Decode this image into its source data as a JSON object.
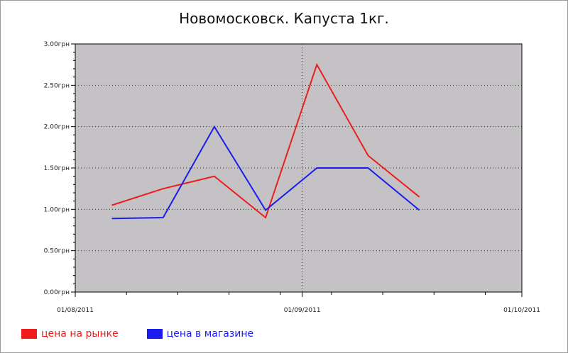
{
  "chart_data": {
    "type": "line",
    "title": "Новомосковск. Капуста 1кг.",
    "xlabel": "",
    "ylabel": "",
    "x_ticks": [
      "01/08/2011",
      "01/09/2011",
      "01/10/2011"
    ],
    "x_range": [
      "2011-08-01",
      "2011-10-01"
    ],
    "y_ticks": [
      "0.00грн",
      "0.50грн",
      "1.00грн",
      "1.50грн",
      "2.00грн",
      "2.50грн",
      "3.00грн"
    ],
    "ylim": [
      0,
      3
    ],
    "grid": true,
    "legend_position": "bottom-left",
    "background_color": "#c5c2c5",
    "series": [
      {
        "name": "цена на рынке",
        "color": "#ee1c1c",
        "points": [
          {
            "date": "2011-08-06",
            "value": 1.05
          },
          {
            "date": "2011-08-13",
            "value": 1.25
          },
          {
            "date": "2011-08-20",
            "value": 1.4
          },
          {
            "date": "2011-08-27",
            "value": 0.9
          },
          {
            "date": "2011-09-03",
            "value": 2.75
          },
          {
            "date": "2011-09-10",
            "value": 1.65
          },
          {
            "date": "2011-09-17",
            "value": 1.15
          }
        ]
      },
      {
        "name": "цена в магазине",
        "color": "#1c1cee",
        "points": [
          {
            "date": "2011-08-06",
            "value": 0.89
          },
          {
            "date": "2011-08-13",
            "value": 0.9
          },
          {
            "date": "2011-08-20",
            "value": 2.0
          },
          {
            "date": "2011-08-27",
            "value": 0.99
          },
          {
            "date": "2011-09-03",
            "value": 1.5
          },
          {
            "date": "2011-09-10",
            "value": 1.5
          },
          {
            "date": "2011-09-17",
            "value": 0.99
          }
        ]
      }
    ]
  }
}
